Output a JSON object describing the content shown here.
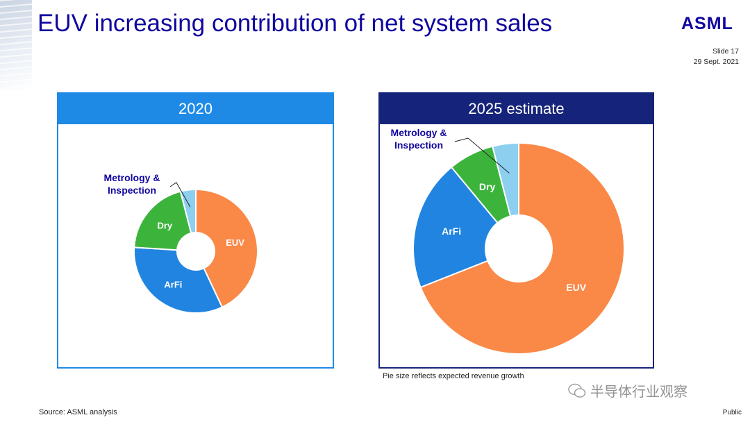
{
  "title": "EUV increasing contribution of net system sales",
  "logo": "ASML",
  "slide_number": "Slide 17",
  "date": "29 Sept. 2021",
  "footnote": "Pie size reflects expected revenue growth",
  "source": "Source: ASML analysis",
  "classification": "Public",
  "watermark": "半导体行业观察",
  "colors": {
    "EUV": "#fa8846",
    "ArFi": "#2184e0",
    "Dry": "#3cb43c",
    "Metrology": "#8ccfee"
  },
  "chart_data": [
    {
      "type": "pie",
      "title": "2020",
      "labels": [
        "EUV",
        "ArFi",
        "Dry",
        "Metrology & Inspection"
      ],
      "values": [
        43,
        33,
        20,
        4
      ]
    },
    {
      "type": "pie",
      "title": "2025 estimate",
      "labels": [
        "EUV",
        "ArFi",
        "Dry",
        "Metrology & Inspection"
      ],
      "values": [
        69,
        20,
        7,
        4
      ]
    }
  ]
}
